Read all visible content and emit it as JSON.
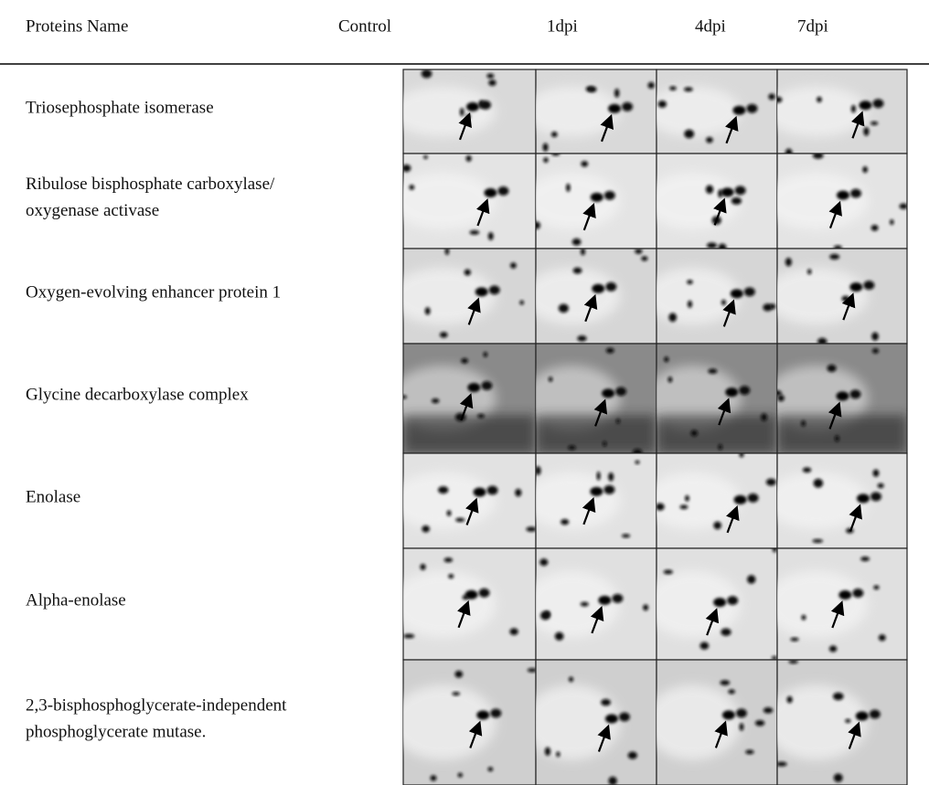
{
  "header": {
    "columns": [
      "Proteins Name",
      "Control",
      "1dpi",
      "4dpi",
      "7dpi"
    ]
  },
  "rows": [
    {
      "name": [
        "Triosephosphate isomerase"
      ]
    },
    {
      "name": [
        "Ribulose bisphosphate carboxylase/",
        "oxygenase activase"
      ]
    },
    {
      "name": [
        "Oxygen-evolving enhancer protein 1"
      ]
    },
    {
      "name": [
        "Glycine decarboxylase complex"
      ]
    },
    {
      "name": [
        "Enolase"
      ]
    },
    {
      "name": [
        "Alpha-enolase"
      ]
    },
    {
      "name": [
        "2,3-bisphosphoglycerate-independent",
        "phosphoglycerate mutase."
      ]
    }
  ]
}
